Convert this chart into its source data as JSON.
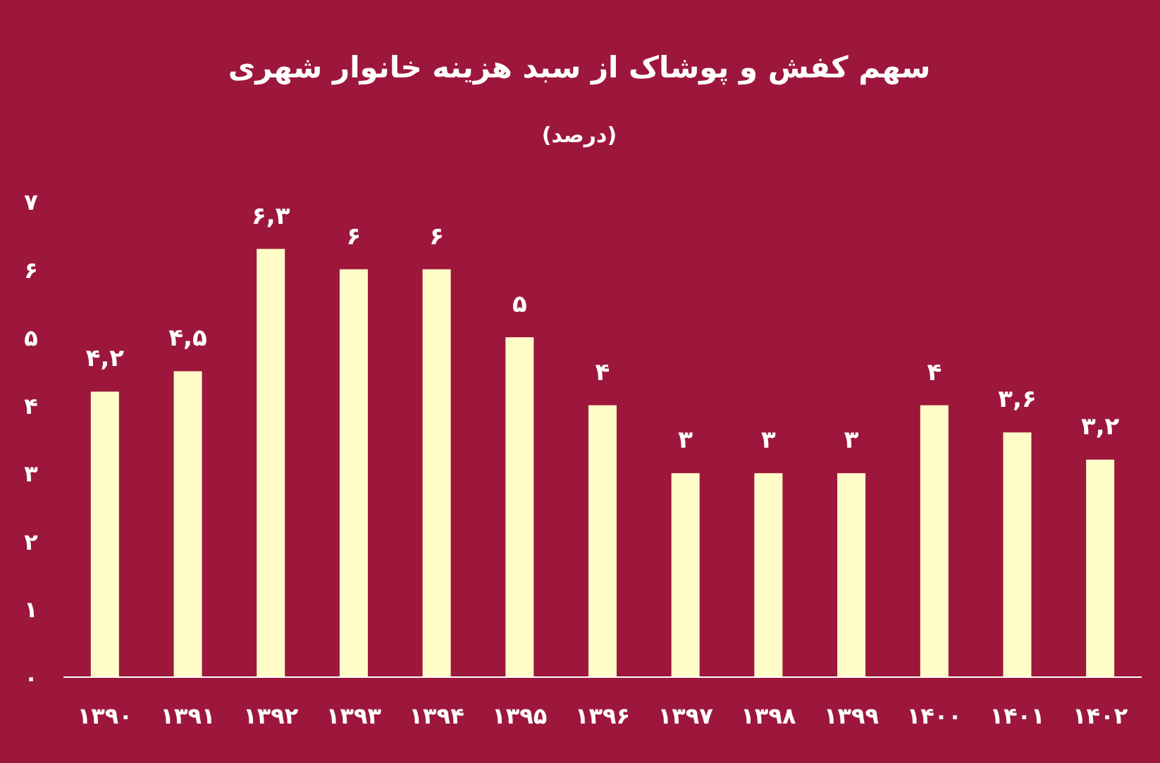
{
  "chart_data": {
    "type": "bar",
    "title": "سهم کفش و پوشاک از سبد هزینه خانوار شهری",
    "subtitle": "(درصد)",
    "categories": [
      "۱۳۹۰",
      "۱۳۹۱",
      "۱۳۹۲",
      "۱۳۹۳",
      "۱۳۹۴",
      "۱۳۹۵",
      "۱۳۹۶",
      "۱۳۹۷",
      "۱۳۹۸",
      "۱۳۹۹",
      "۱۴۰۰",
      "۱۴۰۱",
      "۱۴۰۲"
    ],
    "values": [
      4.2,
      4.5,
      6.3,
      6,
      6,
      5,
      4,
      3,
      3,
      3,
      4,
      3.6,
      3.2
    ],
    "value_labels": [
      "۴,۲",
      "۴,۵",
      "۶,۳",
      "۶",
      "۶",
      "۵",
      "۴",
      "۳",
      "۳",
      "۳",
      "۴",
      "۳,۶",
      "۳,۲"
    ],
    "color": "#fffcc8",
    "ylim": [
      0,
      7
    ],
    "yticks": [
      {
        "value": 0,
        "label": "۰"
      },
      {
        "value": 1,
        "label": "۱"
      },
      {
        "value": 2,
        "label": "۲"
      },
      {
        "value": 3,
        "label": "۳"
      },
      {
        "value": 4,
        "label": "۴"
      },
      {
        "value": 5,
        "label": "۵"
      },
      {
        "value": 6,
        "label": "۶"
      },
      {
        "value": 7,
        "label": "۷"
      }
    ],
    "grid": false
  }
}
